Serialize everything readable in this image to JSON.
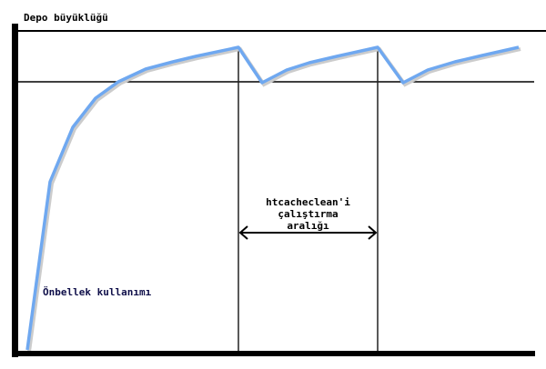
{
  "y_axis_label": "Depo büyüklüğü",
  "interval_label": [
    "htcacheclean'i",
    "çalıştırma",
    "aralığı"
  ],
  "curve_label": "Önbellek kullanımı",
  "colors": {
    "curve": "#6fa8f0",
    "axes": "#000000",
    "curve_label": "#10104a"
  }
}
